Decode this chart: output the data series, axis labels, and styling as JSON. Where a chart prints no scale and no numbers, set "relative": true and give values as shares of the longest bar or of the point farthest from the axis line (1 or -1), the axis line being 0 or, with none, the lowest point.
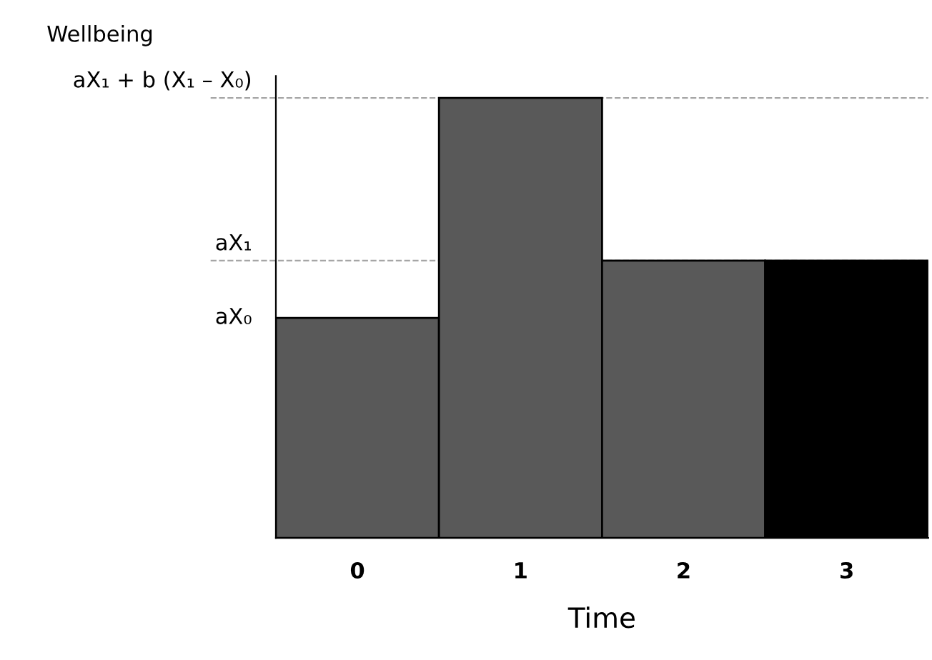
{
  "chart_data": {
    "type": "bar",
    "relative": true,
    "xlabel": "Time",
    "ylabel": "Wellbeing",
    "categories": [
      "0",
      "1",
      "2",
      "3"
    ],
    "values": [
      0.5,
      1,
      0.63,
      0.63
    ],
    "colors": [
      "#595959",
      "#595959",
      "#595959",
      "#000000"
    ],
    "ref_lines": [
      {
        "axis": "y",
        "value": 1,
        "line_style": "dashed",
        "color": "#a6a6a6",
        "label": "aX₁ + b (X₁ – X₀)"
      },
      {
        "axis": "y",
        "value": 0.63,
        "line_style": "dashed",
        "color": "#a6a6a6",
        "label": "aX₁"
      }
    ],
    "annotations": [
      "aX₀"
    ],
    "grid": false,
    "legend": false
  }
}
